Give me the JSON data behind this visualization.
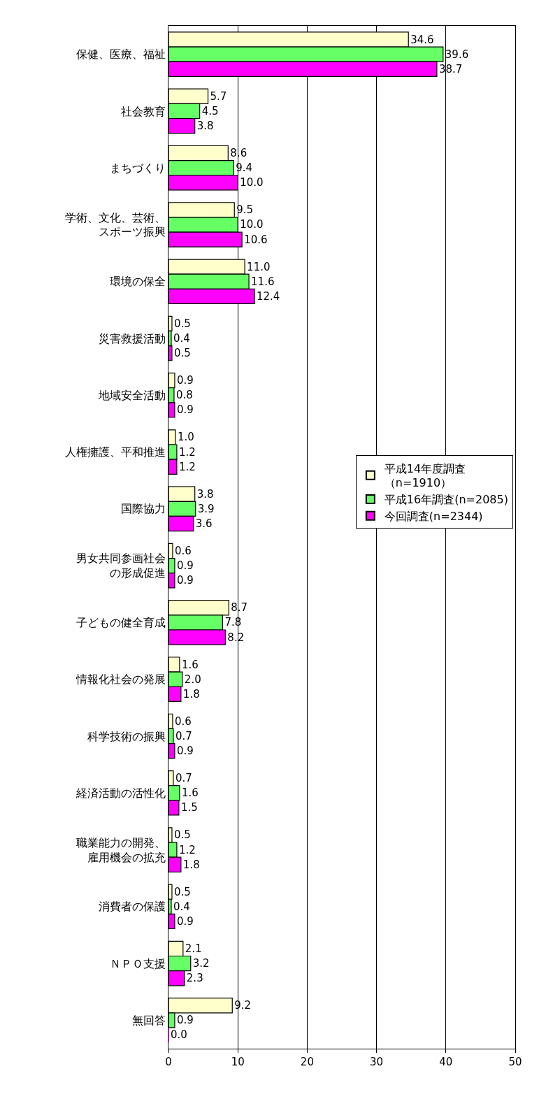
{
  "chart_data": {
    "type": "bar",
    "orientation": "horizontal",
    "categories": [
      "保健、医療、福祉",
      "社会教育",
      "まちづくり",
      "学術、文化、芸術、スポーツ振興",
      "環境の保全",
      "災害救援活動",
      "地域安全活動",
      "人権擁護、平和推進",
      "国際協力",
      "男女共同参画社会の形成促進",
      "子どもの健全育成",
      "情報化社会の発展",
      "科学技術の振興",
      "経済活動の活性化",
      "職業能力の開発、雇用機会の拡充",
      "消費者の保護",
      "ＮＰＯ支援",
      "無回答"
    ],
    "series": [
      {
        "name": "平成14年度調査（n=1910）",
        "color": "#ffffcc",
        "values": [
          34.6,
          5.7,
          8.6,
          9.5,
          11.0,
          0.5,
          0.9,
          1.0,
          3.8,
          0.6,
          8.7,
          1.6,
          0.6,
          0.7,
          0.5,
          0.5,
          2.1,
          9.2
        ],
        "value_labels": [
          "34.6",
          "5.7",
          "8.6",
          "9.5",
          "11.0",
          "0.5",
          "0.9",
          "1.0",
          "3.8",
          "0.6",
          "8.7",
          "1.6",
          "0.6",
          "0.7",
          "0.5",
          "0.5",
          "2.1",
          "9.2"
        ]
      },
      {
        "name": "平成16年調査(n=2085)",
        "color": "#66ff66",
        "values": [
          39.6,
          4.5,
          9.4,
          10.0,
          11.6,
          0.4,
          0.8,
          1.2,
          3.9,
          0.9,
          7.8,
          2.0,
          0.7,
          1.6,
          1.2,
          0.4,
          3.2,
          0.9
        ],
        "value_labels": [
          "39.6",
          "4.5",
          "9.4",
          "10.0",
          "11.6",
          "0.4",
          "0.8",
          "1.2",
          "3.9",
          "0.9",
          "7.8",
          "2.0",
          "0.7",
          "1.6",
          "1.2",
          "0.4",
          "3.2",
          "0.9"
        ]
      },
      {
        "name": "今回調査(n=2344)",
        "color": "#ff00ff",
        "values": [
          38.7,
          3.8,
          10.0,
          10.6,
          12.4,
          0.5,
          0.9,
          1.2,
          3.6,
          0.9,
          8.2,
          1.8,
          0.9,
          1.5,
          1.8,
          0.9,
          2.3,
          0.0
        ],
        "value_labels": [
          "38.7",
          "3.8",
          "10.0",
          "10.6",
          "12.4",
          "0.5",
          "0.9",
          "1.2",
          "3.6",
          "0.9",
          "8.2",
          "1.8",
          "0.9",
          "1.5",
          "1.8",
          "0.9",
          "2.3",
          "0.0"
        ]
      }
    ],
    "xlim": [
      0,
      50
    ],
    "xticks": [
      0,
      10,
      20,
      30,
      40,
      50
    ],
    "grid": "x",
    "legend": "right"
  }
}
